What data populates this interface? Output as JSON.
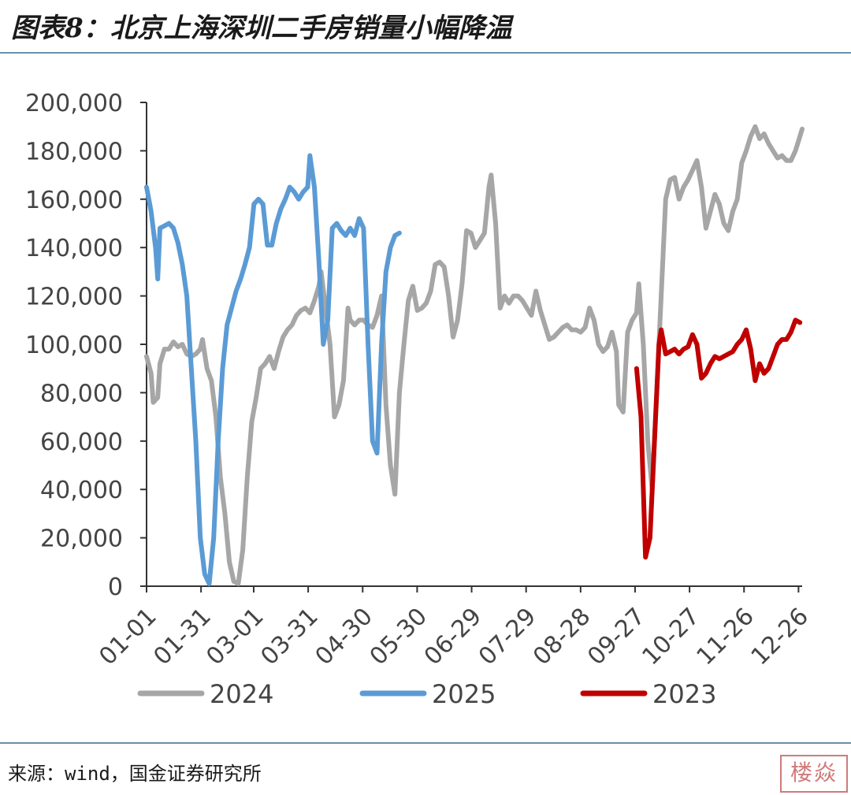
{
  "title": "图表8：北京上海深圳二手房销量小幅降温",
  "source": "来源：wind，国金证券研究所",
  "stamp": "楼焱",
  "chart_data": {
    "type": "line",
    "title": "",
    "xlabel": "",
    "ylabel": "",
    "ylim": [
      0,
      200000
    ],
    "y_ticks": [
      "0",
      "20,000",
      "40,000",
      "60,000",
      "80,000",
      "100,000",
      "120,000",
      "140,000",
      "160,000",
      "180,000",
      "200,000"
    ],
    "x_ticks": [
      "01-01",
      "01-31",
      "03-01",
      "03-31",
      "04-30",
      "05-30",
      "06-29",
      "07-29",
      "08-28",
      "09-27",
      "10-27",
      "11-26",
      "12-26"
    ],
    "x_tick_days": [
      0,
      30,
      59,
      89,
      119,
      149,
      179,
      209,
      239,
      269,
      299,
      329,
      359
    ],
    "legend_position": "bottom",
    "series": [
      {
        "name": "2024",
        "color": "#a6a6a6",
        "points": [
          [
            0,
            95000
          ],
          [
            2,
            88000
          ],
          [
            3,
            76000
          ],
          [
            5,
            78000
          ],
          [
            6,
            92000
          ],
          [
            8,
            98000
          ],
          [
            10,
            98000
          ],
          [
            12,
            101000
          ],
          [
            14,
            99000
          ],
          [
            16,
            100000
          ],
          [
            18,
            96000
          ],
          [
            20,
            95000
          ],
          [
            22,
            96000
          ],
          [
            24,
            98000
          ],
          [
            25,
            102000
          ],
          [
            27,
            90000
          ],
          [
            29,
            85000
          ],
          [
            31,
            70000
          ],
          [
            33,
            45000
          ],
          [
            35,
            30000
          ],
          [
            37,
            10000
          ],
          [
            39,
            2000
          ],
          [
            41,
            1000
          ],
          [
            43,
            15000
          ],
          [
            45,
            45000
          ],
          [
            47,
            68000
          ],
          [
            49,
            78000
          ],
          [
            51,
            90000
          ],
          [
            53,
            92000
          ],
          [
            55,
            95000
          ],
          [
            57,
            90000
          ],
          [
            59,
            97000
          ],
          [
            61,
            103000
          ],
          [
            63,
            106000
          ],
          [
            65,
            108000
          ],
          [
            67,
            112000
          ],
          [
            69,
            114000
          ],
          [
            71,
            115000
          ],
          [
            73,
            113000
          ],
          [
            75,
            118000
          ],
          [
            77,
            124000
          ],
          [
            78,
            130000
          ],
          [
            80,
            115000
          ],
          [
            82,
            100000
          ],
          [
            84,
            70000
          ],
          [
            86,
            75000
          ],
          [
            88,
            85000
          ],
          [
            90,
            115000
          ],
          [
            91,
            110000
          ],
          [
            93,
            108000
          ],
          [
            95,
            110000
          ],
          [
            97,
            110000
          ],
          [
            99,
            108000
          ],
          [
            101,
            107000
          ],
          [
            103,
            112000
          ],
          [
            105,
            120000
          ],
          [
            107,
            75000
          ],
          [
            109,
            50000
          ],
          [
            111,
            38000
          ],
          [
            113,
            80000
          ],
          [
            115,
            100000
          ],
          [
            117,
            118000
          ],
          [
            119,
            124000
          ],
          [
            121,
            114000
          ],
          [
            123,
            115000
          ],
          [
            125,
            117000
          ],
          [
            127,
            122000
          ],
          [
            129,
            133000
          ],
          [
            131,
            134000
          ],
          [
            133,
            132000
          ],
          [
            135,
            120000
          ],
          [
            137,
            103000
          ],
          [
            139,
            110000
          ],
          [
            141,
            125000
          ],
          [
            143,
            147000
          ],
          [
            145,
            146000
          ],
          [
            147,
            140000
          ],
          [
            149,
            143000
          ],
          [
            151,
            146000
          ],
          [
            153,
            165000
          ],
          [
            154,
            170000
          ],
          [
            156,
            150000
          ],
          [
            158,
            115000
          ],
          [
            160,
            120000
          ],
          [
            162,
            117000
          ],
          [
            164,
            120000
          ],
          [
            166,
            120000
          ],
          [
            168,
            118000
          ],
          [
            170,
            115000
          ],
          [
            172,
            112000
          ],
          [
            174,
            122000
          ],
          [
            176,
            114000
          ],
          [
            178,
            108000
          ],
          [
            180,
            102000
          ],
          [
            182,
            103000
          ],
          [
            184,
            105000
          ],
          [
            186,
            107000
          ],
          [
            188,
            108000
          ],
          [
            190,
            106000
          ],
          [
            192,
            106000
          ],
          [
            194,
            105000
          ],
          [
            196,
            107000
          ],
          [
            198,
            115000
          ],
          [
            200,
            110000
          ],
          [
            202,
            100000
          ],
          [
            204,
            97000
          ],
          [
            206,
            99000
          ],
          [
            208,
            105000
          ],
          [
            210,
            97000
          ],
          [
            211,
            75000
          ],
          [
            213,
            72000
          ],
          [
            215,
            105000
          ],
          [
            217,
            110000
          ],
          [
            219,
            113000
          ],
          [
            220,
            125000
          ],
          [
            222,
            100000
          ],
          [
            224,
            60000
          ],
          [
            226,
            40000
          ],
          [
            228,
            80000
          ],
          [
            230,
            120000
          ],
          [
            232,
            160000
          ],
          [
            234,
            168000
          ],
          [
            236,
            169000
          ],
          [
            238,
            160000
          ],
          [
            240,
            165000
          ],
          [
            242,
            168000
          ],
          [
            244,
            172000
          ],
          [
            246,
            176000
          ],
          [
            248,
            165000
          ],
          [
            250,
            148000
          ],
          [
            252,
            155000
          ],
          [
            254,
            162000
          ],
          [
            256,
            158000
          ],
          [
            258,
            150000
          ],
          [
            260,
            147000
          ],
          [
            262,
            155000
          ],
          [
            264,
            160000
          ],
          [
            266,
            175000
          ],
          [
            268,
            180000
          ],
          [
            270,
            186000
          ],
          [
            272,
            190000
          ],
          [
            274,
            185000
          ],
          [
            276,
            187000
          ],
          [
            278,
            183000
          ],
          [
            280,
            180000
          ],
          [
            282,
            177000
          ],
          [
            284,
            178000
          ],
          [
            286,
            176000
          ],
          [
            288,
            176000
          ],
          [
            290,
            180000
          ],
          [
            292,
            186000
          ],
          [
            293,
            189000
          ]
        ]
      },
      {
        "name": "2025",
        "color": "#5b9bd5",
        "points": [
          [
            0,
            165000
          ],
          [
            2,
            155000
          ],
          [
            4,
            140000
          ],
          [
            5,
            127000
          ],
          [
            6,
            148000
          ],
          [
            8,
            149000
          ],
          [
            10,
            150000
          ],
          [
            12,
            148000
          ],
          [
            14,
            142000
          ],
          [
            16,
            133000
          ],
          [
            18,
            120000
          ],
          [
            20,
            90000
          ],
          [
            22,
            60000
          ],
          [
            24,
            20000
          ],
          [
            26,
            5000
          ],
          [
            28,
            1000
          ],
          [
            30,
            20000
          ],
          [
            32,
            60000
          ],
          [
            34,
            90000
          ],
          [
            36,
            108000
          ],
          [
            38,
            115000
          ],
          [
            40,
            122000
          ],
          [
            42,
            127000
          ],
          [
            44,
            133000
          ],
          [
            46,
            140000
          ],
          [
            48,
            158000
          ],
          [
            50,
            160000
          ],
          [
            52,
            158000
          ],
          [
            54,
            141000
          ],
          [
            56,
            141000
          ],
          [
            58,
            150000
          ],
          [
            60,
            156000
          ],
          [
            62,
            160000
          ],
          [
            64,
            165000
          ],
          [
            66,
            163000
          ],
          [
            68,
            160000
          ],
          [
            70,
            163000
          ],
          [
            72,
            165000
          ],
          [
            73,
            178000
          ],
          [
            75,
            165000
          ],
          [
            77,
            135000
          ],
          [
            79,
            100000
          ],
          [
            81,
            110000
          ],
          [
            83,
            148000
          ],
          [
            85,
            150000
          ],
          [
            87,
            147000
          ],
          [
            89,
            145000
          ],
          [
            91,
            148000
          ],
          [
            93,
            145000
          ],
          [
            95,
            152000
          ],
          [
            97,
            148000
          ],
          [
            99,
            100000
          ],
          [
            101,
            60000
          ],
          [
            103,
            55000
          ],
          [
            105,
            100000
          ],
          [
            107,
            130000
          ],
          [
            109,
            140000
          ],
          [
            111,
            145000
          ],
          [
            113,
            146000
          ]
        ]
      },
      {
        "name": "2023",
        "color": "#c00000",
        "points": [
          [
            219,
            90000
          ],
          [
            221,
            70000
          ],
          [
            223,
            12000
          ],
          [
            225,
            20000
          ],
          [
            227,
            60000
          ],
          [
            229,
            100000
          ],
          [
            230,
            106000
          ],
          [
            232,
            96000
          ],
          [
            234,
            97000
          ],
          [
            236,
            98000
          ],
          [
            238,
            96000
          ],
          [
            240,
            98000
          ],
          [
            242,
            99000
          ],
          [
            244,
            104000
          ],
          [
            246,
            100000
          ],
          [
            248,
            86000
          ],
          [
            250,
            88000
          ],
          [
            252,
            92000
          ],
          [
            254,
            95000
          ],
          [
            256,
            94000
          ],
          [
            258,
            95000
          ],
          [
            260,
            96000
          ],
          [
            262,
            97000
          ],
          [
            264,
            100000
          ],
          [
            266,
            102000
          ],
          [
            268,
            106000
          ],
          [
            270,
            98000
          ],
          [
            272,
            85000
          ],
          [
            274,
            92000
          ],
          [
            276,
            88000
          ],
          [
            278,
            90000
          ],
          [
            280,
            95000
          ],
          [
            282,
            100000
          ],
          [
            284,
            102000
          ],
          [
            286,
            102000
          ],
          [
            288,
            105000
          ],
          [
            290,
            110000
          ],
          [
            292,
            109000
          ]
        ]
      }
    ]
  }
}
